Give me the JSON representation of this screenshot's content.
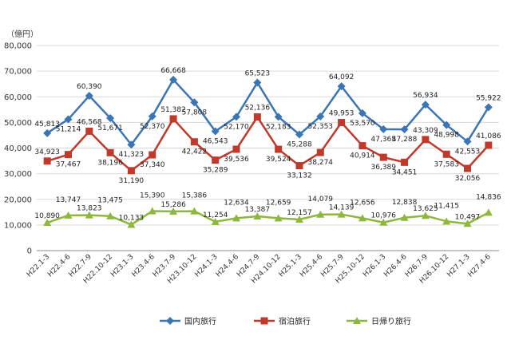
{
  "chart_data": {
    "type": "line",
    "unit_label": "（億円）",
    "ylim": [
      0,
      80000
    ],
    "yticks": [
      "0",
      "10,000",
      "20,000",
      "30,000",
      "40,000",
      "50,000",
      "60,000",
      "70,000",
      "80,000"
    ],
    "ytick_values": [
      0,
      10000,
      20000,
      30000,
      40000,
      50000,
      60000,
      70000,
      80000
    ],
    "grid": true,
    "legend_position": "bottom",
    "categories": [
      "H22.1-3",
      "H22.4-6",
      "H22.7-9",
      "H22.10-12",
      "H23.1-3",
      "H23.4-6",
      "H23.7-9",
      "H23.10-12",
      "H24.1-3",
      "H24.4-6",
      "H24.7-9",
      "H24.10-12",
      "H25.1-3",
      "H25.4-6",
      "H25.7-9",
      "H25.10-12",
      "H26.1-3",
      "H26.4-6",
      "H26.7-9",
      "H26.10-12",
      "H27.1-3",
      "H27.4-6"
    ],
    "series": [
      {
        "name": "国内旅行",
        "color": "#3a75b5",
        "marker": "diamond",
        "values": [
          45813,
          51214,
          60390,
          51671,
          41323,
          52370,
          66668,
          57808,
          46543,
          52170,
          65523,
          52183,
          45288,
          52353,
          64092,
          53570,
          47365,
          47288,
          56934,
          48998,
          42553,
          55922
        ],
        "labels": [
          "45,813",
          "51,214",
          "60,390",
          "51,671",
          "41,323",
          "52,370",
          "66,668",
          "57,808",
          "46,543",
          "52,170",
          "65,523",
          "52,183",
          "45,288",
          "52,353",
          "64,092",
          "53,570",
          "47,365",
          "47,288",
          "56,934",
          "48,998",
          "42,553",
          "55,922"
        ]
      },
      {
        "name": "宿泊旅行",
        "color": "#c0392b",
        "marker": "square",
        "values": [
          34923,
          37467,
          46568,
          38196,
          31190,
          37340,
          51382,
          42422,
          35289,
          39536,
          52136,
          39524,
          33132,
          38274,
          49953,
          40914,
          36389,
          34451,
          43309,
          37583,
          32056,
          41086
        ],
        "labels": [
          "34,923",
          "37,467",
          "46,568",
          "38,196",
          "31,190",
          "37,340",
          "51,382",
          "42,422",
          "35,289",
          "39,536",
          "52,136",
          "39,524",
          "33,132",
          "38,274",
          "49,953",
          "40,914",
          "36,389",
          "34,451",
          "43,309",
          "37,583",
          "32,056",
          "41,086"
        ]
      },
      {
        "name": "日帰り旅行",
        "color": "#8db83d",
        "marker": "triangle",
        "values": [
          10890,
          13747,
          13823,
          13475,
          10133,
          15390,
          15286,
          15386,
          11254,
          12634,
          13387,
          12659,
          12157,
          14079,
          14139,
          12656,
          10976,
          12838,
          13625,
          11415,
          10497,
          14836
        ],
        "labels": [
          "10,890",
          "13,747",
          "13,823",
          "13,475",
          "10,133",
          "15,390",
          "15,286",
          "15,386",
          "11,254",
          "12,634",
          "13,387",
          "12,659",
          "12,157",
          "14,079",
          "14,139",
          "12,656",
          "10,976",
          "12,838",
          "13,625",
          "11,415",
          "10,497",
          "14,836"
        ]
      }
    ]
  }
}
